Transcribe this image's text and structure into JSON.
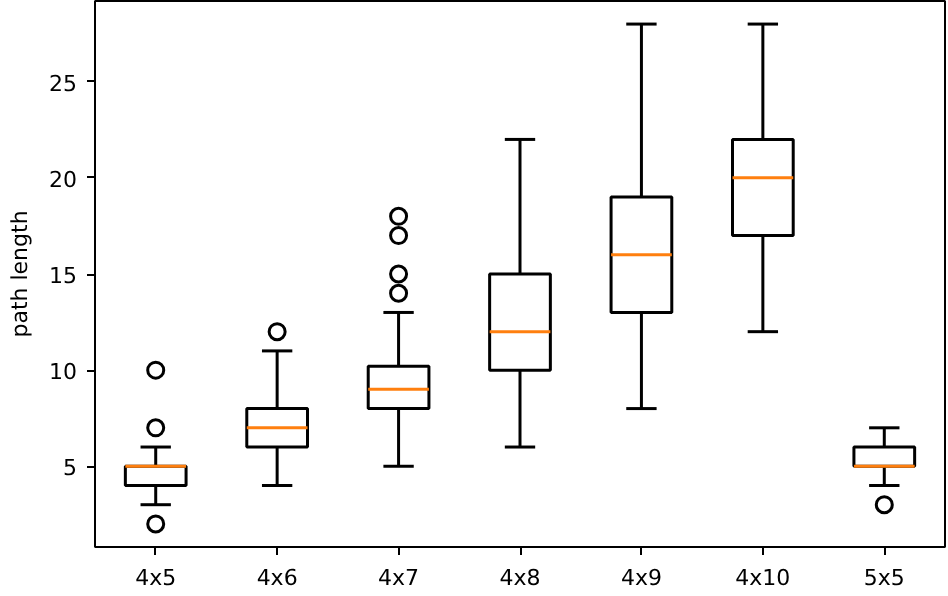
{
  "chart_data": {
    "type": "box",
    "ylabel": "path length",
    "categories": [
      "4x5",
      "4x6",
      "4x7",
      "4x8",
      "4x9",
      "4x10",
      "5x5"
    ],
    "boxes": [
      {
        "low": 3,
        "q1": 4,
        "median": 5,
        "q3": 5,
        "high": 6,
        "outliers": [
          2,
          7,
          10
        ]
      },
      {
        "low": 4,
        "q1": 6,
        "median": 7,
        "q3": 8,
        "high": 11,
        "outliers": [
          12
        ]
      },
      {
        "low": 5,
        "q1": 8,
        "median": 9,
        "q3": 10.2,
        "high": 13,
        "outliers": [
          14,
          15,
          17,
          18
        ]
      },
      {
        "low": 6,
        "q1": 10,
        "median": 12,
        "q3": 15,
        "high": 22
      },
      {
        "low": 8,
        "q1": 13,
        "median": 16,
        "q3": 19,
        "high": 28
      },
      {
        "low": 12,
        "q1": 17,
        "median": 20,
        "q3": 22,
        "high": 28
      },
      {
        "low": 4,
        "q1": 5,
        "median": 5,
        "q3": 6,
        "high": 7,
        "outliers": [
          3
        ]
      }
    ],
    "color": "#000000",
    "ylim": [
      0.8,
      29.2
    ],
    "yticks": [
      5,
      10,
      15,
      20,
      25
    ],
    "grid": false
  }
}
